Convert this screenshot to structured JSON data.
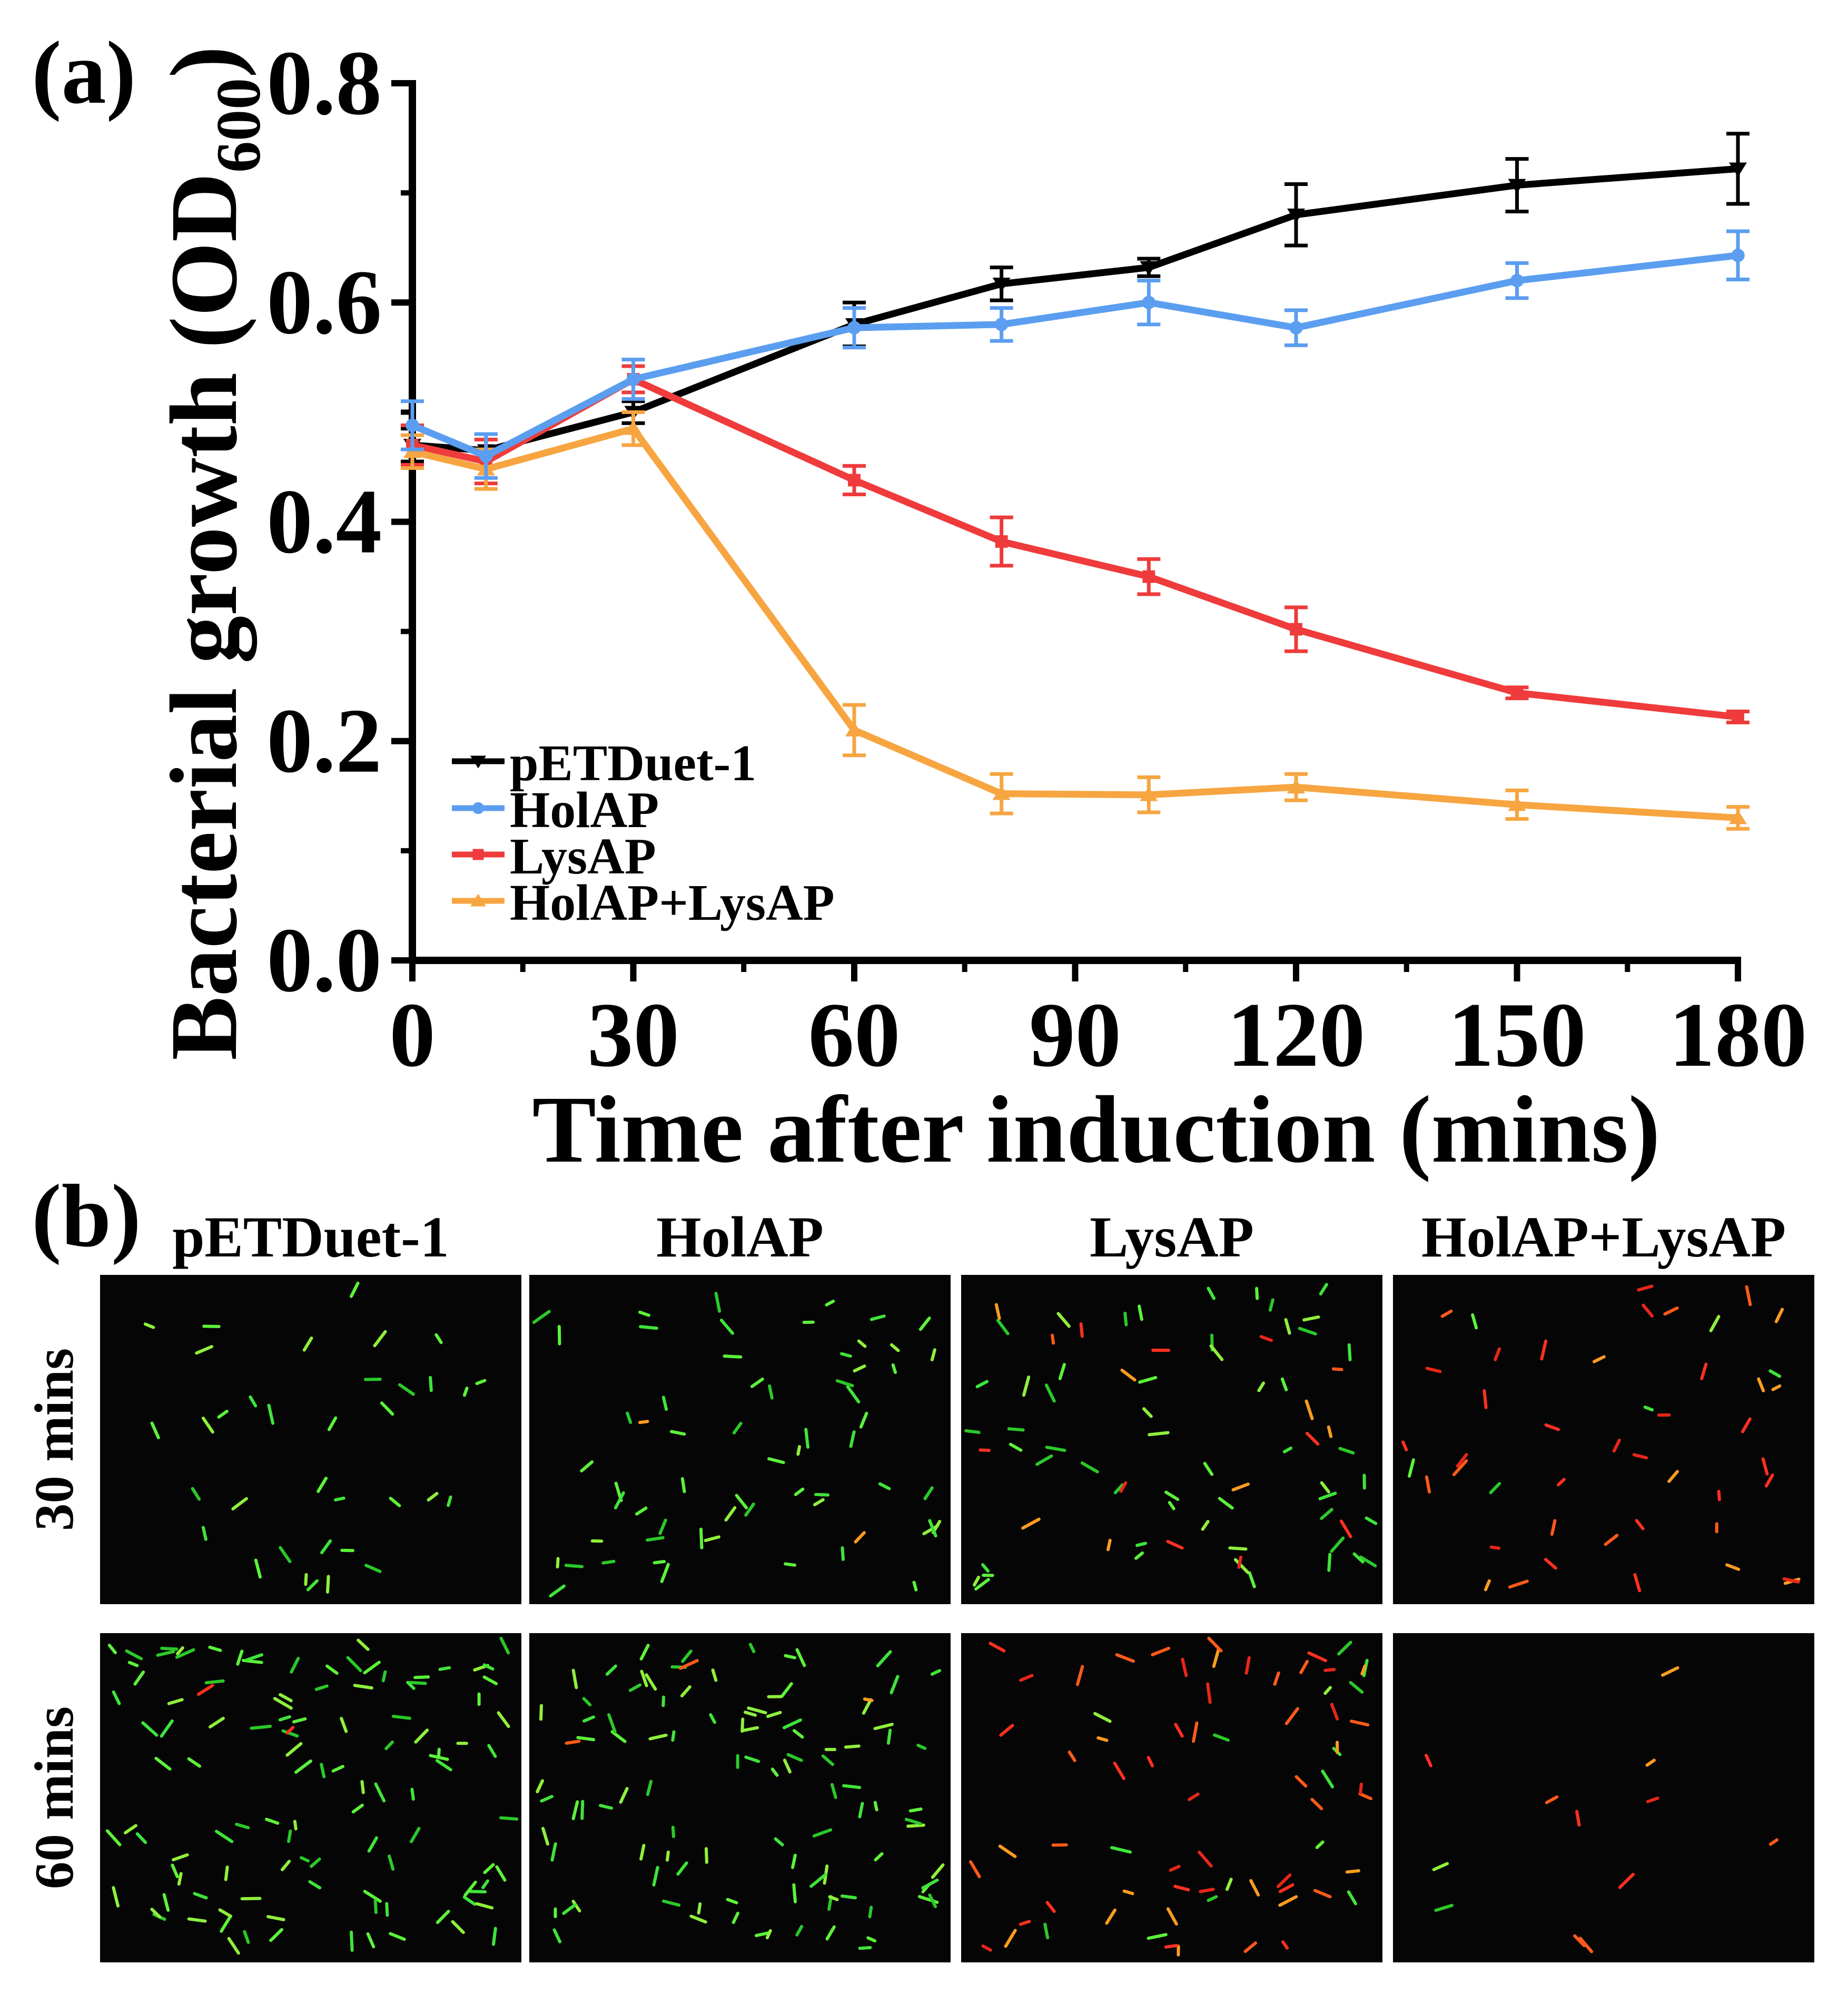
{
  "panel_a_label": "(a)",
  "panel_b_label": "(b)",
  "chart_data": {
    "type": "line",
    "title": "",
    "xlabel": "Time after induction (mins)",
    "ylabel_main": "Bacterial growth (OD",
    "ylabel_sub": "600",
    "ylabel_close": ")",
    "xlim": [
      0,
      180
    ],
    "ylim": [
      0.0,
      0.8
    ],
    "xticks": [
      0,
      30,
      60,
      90,
      120,
      150,
      180
    ],
    "xtick_labels": [
      "0",
      "30",
      "60",
      "90",
      "120",
      "150",
      "180"
    ],
    "yticks": [
      0.0,
      0.2,
      0.4,
      0.6,
      0.8
    ],
    "ytick_labels": [
      "0.0",
      "0.2",
      "0.4",
      "0.6",
      "0.8"
    ],
    "x": [
      0,
      10,
      30,
      60,
      80,
      100,
      120,
      150,
      180
    ],
    "legend_position": "bottom-left",
    "series": [
      {
        "name": "pETDuet-1",
        "color": "#000000",
        "marker": "triangle-down",
        "values": [
          0.47,
          0.465,
          0.5,
          0.58,
          0.617,
          0.632,
          0.68,
          0.707,
          0.722
        ],
        "errors": [
          0.015,
          0.015,
          0.01,
          0.02,
          0.015,
          0.008,
          0.028,
          0.024,
          0.032
        ]
      },
      {
        "name": "HolAP",
        "color": "#5b9ef0",
        "marker": "circle",
        "values": [
          0.488,
          0.46,
          0.53,
          0.577,
          0.58,
          0.6,
          0.577,
          0.62,
          0.643
        ],
        "errors": [
          0.022,
          0.02,
          0.018,
          0.018,
          0.015,
          0.02,
          0.016,
          0.016,
          0.022
        ]
      },
      {
        "name": "LysAP",
        "color": "#ef3b3b",
        "marker": "square",
        "values": [
          0.47,
          0.455,
          0.53,
          0.438,
          0.382,
          0.35,
          0.302,
          0.244,
          0.222
        ],
        "errors": [
          0.018,
          0.02,
          0.012,
          0.013,
          0.022,
          0.016,
          0.02,
          0.005,
          0.005
        ]
      },
      {
        "name": "HolAP+LysAP",
        "color": "#f7a541",
        "marker": "triangle-up",
        "values": [
          0.464,
          0.448,
          0.485,
          0.21,
          0.152,
          0.151,
          0.158,
          0.142,
          0.13
        ],
        "errors": [
          0.015,
          0.018,
          0.015,
          0.023,
          0.018,
          0.016,
          0.012,
          0.013,
          0.01
        ]
      }
    ]
  },
  "panel_b": {
    "column_labels": [
      "pETDuet-1",
      "HolAP",
      "LysAP",
      "HolAP+LysAP"
    ],
    "row_labels": [
      "30 mins",
      "60 mins"
    ],
    "cells": [
      [
        {
          "green": 35,
          "red": 0
        },
        {
          "green": 60,
          "red": 2
        },
        {
          "green": 55,
          "red": 18
        },
        {
          "green": 6,
          "red": 40
        }
      ],
      [
        {
          "green": 110,
          "red": 2
        },
        {
          "green": 100,
          "red": 3
        },
        {
          "green": 15,
          "red": 55
        },
        {
          "green": 2,
          "red": 10
        }
      ]
    ]
  }
}
